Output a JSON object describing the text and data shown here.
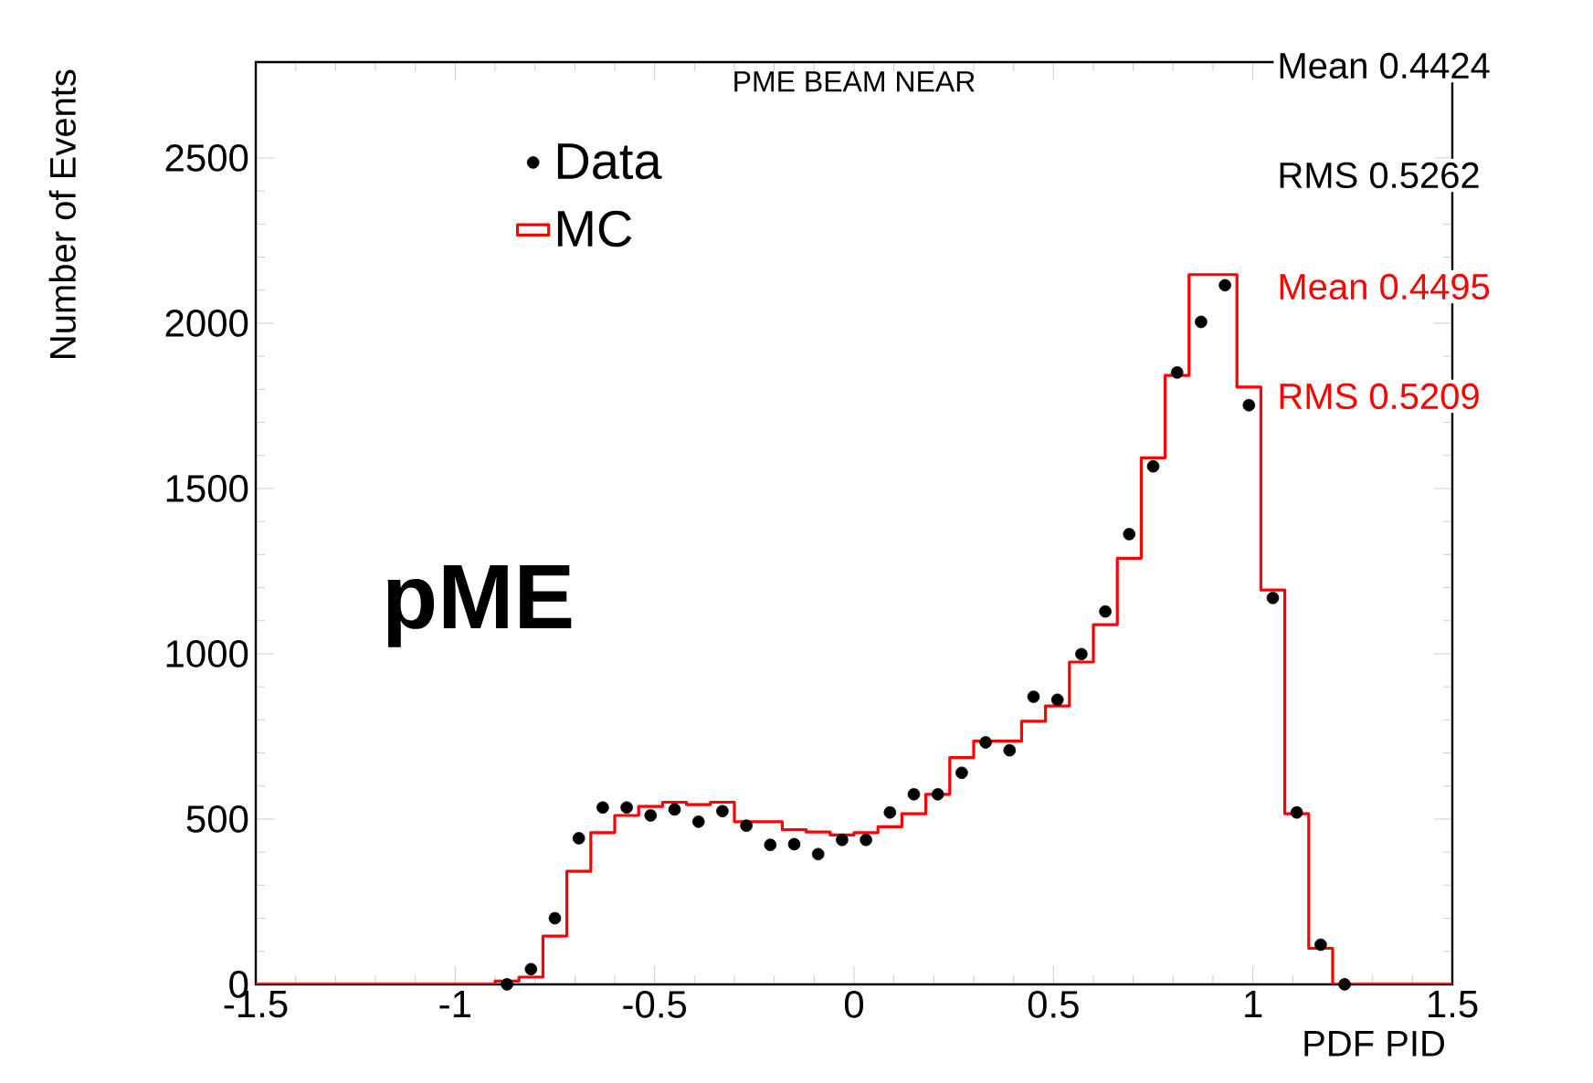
{
  "chart_data": {
    "type": "histogram",
    "title": "PME BEAM NEAR",
    "xlabel": "PDF PID",
    "ylabel": "Number of Events",
    "bins": [
      -1.5,
      -1.44,
      -1.38,
      -1.32,
      -1.26,
      -1.2,
      -1.14,
      -1.08,
      -1.02,
      -0.96,
      -0.9,
      -0.84,
      -0.78,
      -0.72,
      -0.66,
      -0.6,
      -0.54,
      -0.48,
      -0.42,
      -0.36,
      -0.3,
      -0.24,
      -0.18,
      -0.12,
      -0.06,
      0,
      0.06,
      0.12,
      0.18,
      0.24,
      0.3,
      0.36,
      0.42,
      0.48,
      0.54,
      0.6,
      0.66,
      0.72,
      0.78,
      0.84,
      0.9,
      0.96,
      1.02,
      1.08,
      1.14,
      1.2,
      1.26,
      1.32,
      1.38,
      1.44,
      1.5
    ],
    "series": [
      {
        "name": "Data",
        "type": "scatter",
        "color": "#000000",
        "x": [
          -0.87,
          -0.81,
          -0.75,
          -0.69,
          -0.63,
          -0.57,
          -0.51,
          -0.45,
          -0.39,
          -0.33,
          -0.27,
          -0.21,
          -0.15,
          -0.09,
          -0.03,
          0.03,
          0.09,
          0.15,
          0.21,
          0.27,
          0.33,
          0.39,
          0.45,
          0.51,
          0.57,
          0.63,
          0.69,
          0.75,
          0.81,
          0.87,
          0.93,
          0.99,
          1.05,
          1.11,
          1.17,
          1.23
        ],
        "values": [
          0,
          46,
          200,
          442,
          535,
          535,
          511,
          529,
          492,
          524,
          480,
          422,
          424,
          394,
          437,
          437,
          520,
          575,
          575,
          640,
          732,
          708,
          870,
          861,
          999,
          1128,
          1362,
          1567,
          1851,
          2004,
          2115,
          1752,
          1169,
          520,
          120,
          0
        ]
      },
      {
        "name": "MC",
        "color": "#ff0000",
        "values": [
          0,
          0,
          0,
          0,
          0,
          0,
          0,
          0,
          0,
          0,
          10,
          22,
          146,
          342,
          459,
          511,
          538,
          551,
          544,
          551,
          492,
          492,
          468,
          461,
          452,
          459,
          477,
          516,
          575,
          686,
          736,
          736,
          796,
          842,
          975,
          1088,
          1289,
          1593,
          1842,
          2147,
          2147,
          1807,
          1193,
          516,
          109,
          0,
          0,
          0,
          0,
          0
        ]
      }
    ],
    "xlim": [
      -1.5,
      1.5
    ],
    "ylim": [
      0,
      2790
    ],
    "xticks": [
      -1.5,
      -1,
      -0.5,
      0,
      0.5,
      1,
      1.5
    ],
    "yticks": [
      0,
      500,
      1000,
      1500,
      2000,
      2500
    ],
    "legend": "top left",
    "grid": false,
    "marker": "circle",
    "annotations": [
      "pME",
      "Mean  0.4424",
      "RMS  0.5262",
      "Mean  0.4495",
      "RMS  0.5209"
    ]
  }
}
